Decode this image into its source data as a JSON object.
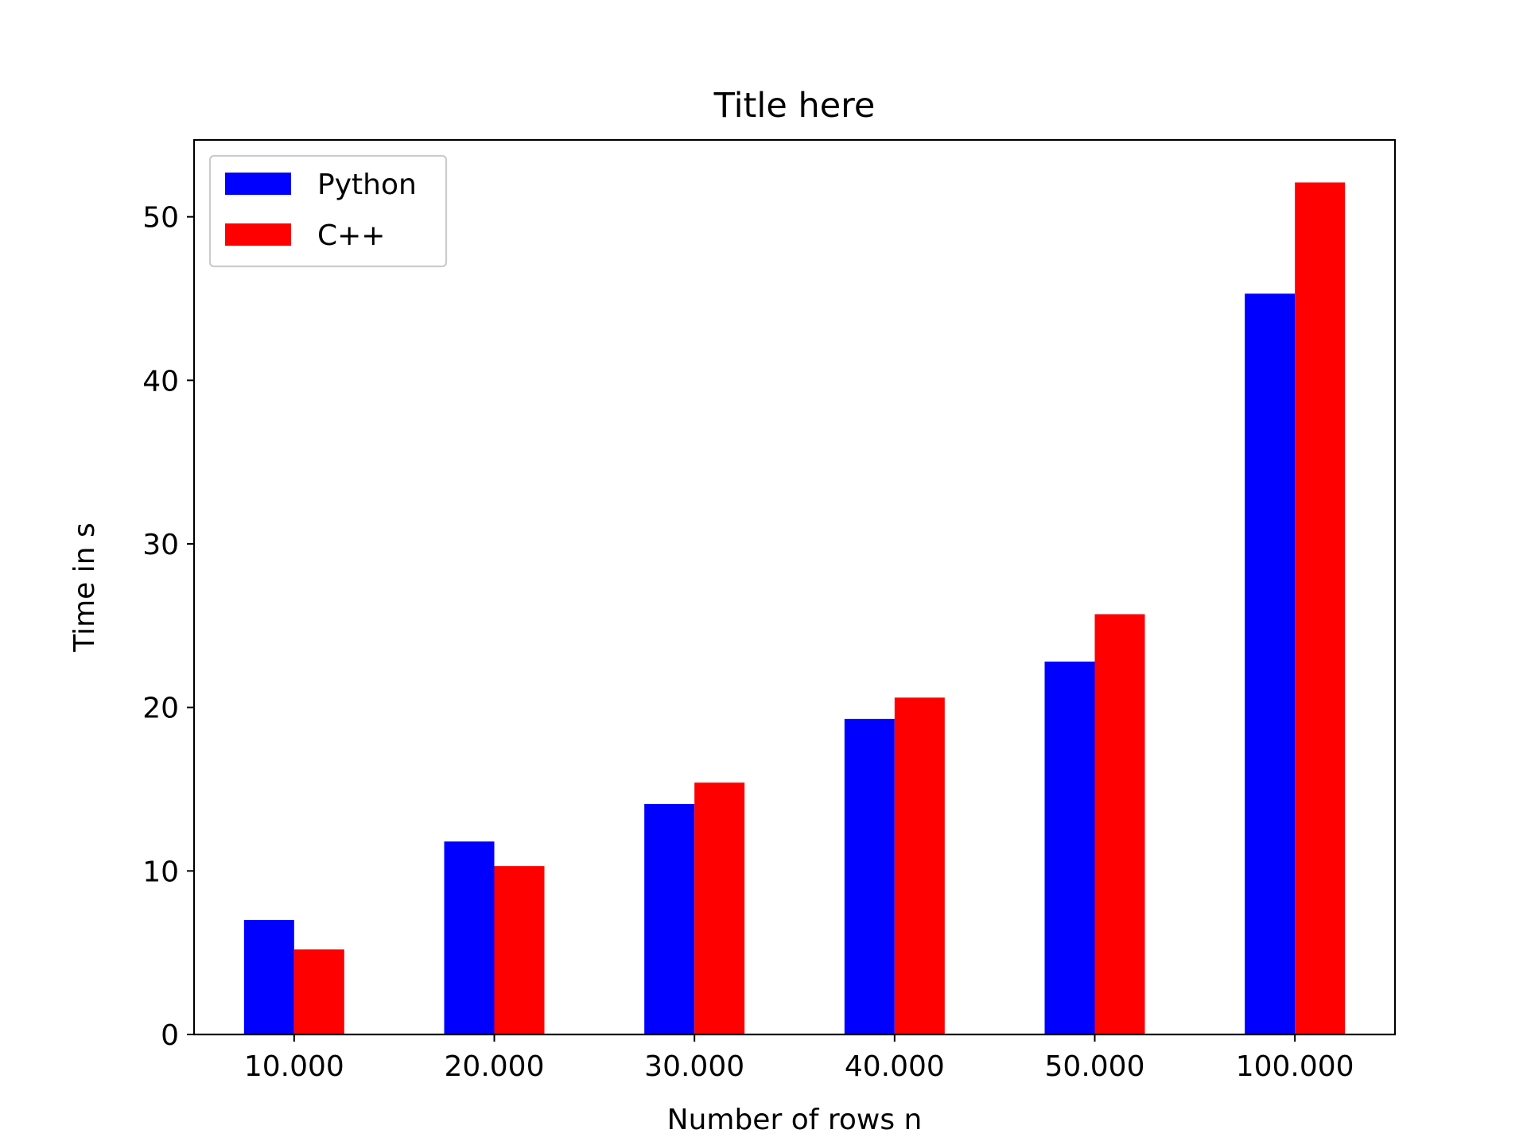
{
  "chart_data": {
    "type": "bar",
    "title": "Title here",
    "xlabel": "Number of rows n",
    "ylabel": "Time in s",
    "categories": [
      "10.000",
      "20.000",
      "30.000",
      "40.000",
      "50.000",
      "100.000"
    ],
    "series": [
      {
        "name": "Python",
        "color": "#0000ff",
        "values": [
          7.0,
          11.8,
          14.1,
          19.3,
          22.8,
          45.3
        ]
      },
      {
        "name": "C++",
        "color": "#ff0000",
        "values": [
          5.2,
          10.3,
          15.4,
          20.6,
          25.7,
          52.1
        ]
      }
    ],
    "ylim": [
      0,
      54.7
    ],
    "yticks": [
      0,
      10,
      20,
      30,
      40,
      50
    ],
    "grid": false,
    "legend_position": "top-left"
  }
}
